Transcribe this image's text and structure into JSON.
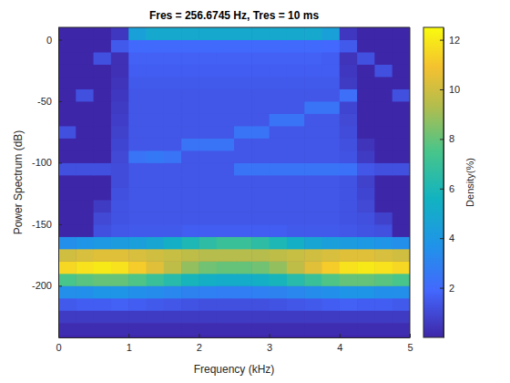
{
  "chart_data": {
    "type": "heatmap",
    "title": "Fres = 256.6745 Hz, Tres = 10 ms",
    "x_label": "Frequency (kHz)",
    "y_label": "Power Spectrum (dB)",
    "xlim": [
      0,
      5
    ],
    "xticks": [
      0,
      1,
      2,
      3,
      4,
      5
    ],
    "ylim": [
      -242,
      10
    ],
    "yticks": [
      -200,
      -150,
      -100,
      -50,
      0
    ],
    "x_bins": [
      0,
      0.25,
      0.5,
      0.75,
      1,
      1.25,
      1.5,
      1.75,
      2,
      2.25,
      2.5,
      2.75,
      3,
      3.25,
      3.5,
      3.75,
      4,
      4.25,
      4.5,
      4.75,
      5
    ],
    "y_bins": [
      -240,
      -230,
      -220,
      -210,
      -200,
      -190,
      -180,
      -170,
      -160,
      -150,
      -140,
      -130,
      -120,
      -110,
      -100,
      -90,
      -80,
      -70,
      -60,
      -50,
      -40,
      -30,
      -20,
      -10,
      0,
      10
    ],
    "density": [
      [
        0.2,
        0.2,
        0.2,
        0.2,
        0.2,
        0.2,
        0.2,
        0.2,
        0.2,
        0.2,
        0.2,
        0.2,
        0.2,
        0.2,
        0.2,
        0.2,
        0.2,
        0.2,
        0.2,
        0.2
      ],
      [
        0.6,
        0.6,
        0.6,
        0.6,
        0.6,
        0.6,
        0.6,
        0.6,
        0.6,
        0.6,
        0.6,
        0.6,
        0.6,
        0.6,
        0.6,
        0.6,
        0.6,
        0.6,
        0.6,
        0.6
      ],
      [
        1.5,
        1.6,
        1.6,
        1.7,
        1.6,
        1.5,
        1.4,
        1.3,
        1.2,
        1.2,
        1.2,
        1.2,
        1.3,
        1.4,
        1.5,
        1.6,
        1.7,
        1.6,
        1.6,
        1.5
      ],
      [
        3.5,
        3.6,
        3.8,
        3.8,
        3.6,
        3.4,
        3.2,
        3.0,
        2.9,
        2.8,
        2.8,
        2.9,
        3.0,
        3.2,
        3.4,
        3.6,
        3.8,
        3.8,
        3.6,
        3.5
      ],
      [
        7.5,
        7.8,
        8.0,
        8.0,
        7.6,
        7.0,
        6.4,
        5.8,
        5.4,
        5.2,
        5.2,
        5.4,
        5.8,
        6.4,
        7.0,
        7.6,
        8.0,
        8.0,
        7.8,
        7.5
      ],
      [
        11.5,
        11.8,
        12.0,
        11.8,
        11.2,
        10.4,
        9.6,
        8.8,
        8.2,
        8.0,
        8.0,
        8.2,
        8.8,
        9.6,
        10.4,
        11.2,
        11.8,
        12.0,
        11.8,
        11.5
      ],
      [
        10.0,
        10.2,
        10.4,
        10.4,
        10.2,
        10.0,
        9.8,
        9.6,
        9.4,
        9.4,
        9.4,
        9.4,
        9.6,
        9.8,
        10.0,
        10.2,
        10.4,
        10.4,
        10.2,
        10.0
      ],
      [
        3.5,
        3.8,
        4.0,
        4.2,
        4.4,
        4.8,
        5.4,
        6.0,
        6.6,
        7.0,
        7.0,
        6.6,
        6.0,
        5.4,
        4.8,
        4.4,
        4.2,
        4.0,
        3.8,
        3.5
      ],
      [
        0,
        0,
        1.2,
        1.4,
        1.5,
        1.5,
        1.5,
        1.6,
        1.6,
        1.6,
        1.6,
        1.6,
        1.6,
        1.5,
        1.5,
        1.5,
        1.4,
        1.3,
        1.2,
        0
      ],
      [
        0,
        0,
        1.0,
        1.3,
        1.4,
        1.4,
        1.4,
        1.4,
        1.4,
        1.4,
        1.4,
        1.4,
        1.4,
        1.4,
        1.4,
        1.4,
        1.3,
        1.2,
        0.8,
        0
      ],
      [
        0,
        0,
        0.6,
        1.3,
        1.4,
        1.4,
        1.4,
        1.4,
        1.4,
        1.4,
        1.4,
        1.4,
        1.4,
        1.4,
        1.4,
        1.4,
        1.3,
        1.0,
        0,
        0
      ],
      [
        0,
        0,
        0,
        1.2,
        1.4,
        1.4,
        1.4,
        1.4,
        1.4,
        1.4,
        1.4,
        1.4,
        1.4,
        1.4,
        1.4,
        1.4,
        1.3,
        0.9,
        0,
        0
      ],
      [
        0,
        0,
        0,
        1.1,
        1.4,
        1.4,
        1.4,
        1.4,
        1.4,
        1.4,
        1.4,
        1.4,
        1.4,
        1.4,
        1.4,
        1.4,
        1.3,
        0.8,
        0,
        0
      ],
      [
        1.2,
        1.2,
        1.2,
        1.1,
        1.4,
        1.4,
        1.4,
        1.4,
        1.4,
        1.4,
        2.4,
        2.4,
        2.4,
        2.4,
        2.4,
        2.4,
        2.3,
        1.4,
        1.2,
        1.2
      ],
      [
        0,
        0,
        0,
        1.0,
        2.4,
        2.6,
        2.4,
        1.4,
        1.4,
        1.4,
        1.4,
        1.4,
        1.4,
        1.4,
        1.4,
        1.4,
        1.3,
        0.6,
        0,
        0
      ],
      [
        0,
        0,
        0,
        0.9,
        1.4,
        1.4,
        1.4,
        2.4,
        2.4,
        2.4,
        1.4,
        1.4,
        1.4,
        1.4,
        1.4,
        1.4,
        1.2,
        0.4,
        0,
        0
      ],
      [
        1.2,
        0,
        0,
        0.8,
        1.4,
        1.4,
        1.4,
        1.4,
        1.4,
        1.4,
        2.4,
        2.4,
        1.4,
        1.4,
        1.4,
        1.4,
        1.1,
        0,
        0,
        0
      ],
      [
        0,
        0,
        0,
        0.7,
        1.4,
        1.4,
        1.4,
        1.4,
        1.4,
        1.4,
        1.4,
        1.4,
        2.4,
        2.4,
        1.4,
        1.4,
        1.0,
        0,
        0,
        0
      ],
      [
        0,
        0,
        0,
        0.6,
        1.4,
        1.4,
        1.4,
        1.4,
        1.4,
        1.4,
        1.4,
        1.4,
        1.4,
        1.4,
        2.4,
        2.4,
        0.9,
        0,
        0,
        0
      ],
      [
        0,
        1.2,
        0,
        0.5,
        1.4,
        1.4,
        1.4,
        1.4,
        1.4,
        1.4,
        1.4,
        1.4,
        1.4,
        1.4,
        1.4,
        1.4,
        2.2,
        0,
        0,
        1.2
      ],
      [
        0,
        0,
        0,
        0.4,
        1.5,
        1.5,
        1.5,
        1.5,
        1.5,
        1.5,
        1.5,
        1.5,
        1.5,
        1.5,
        1.5,
        1.5,
        0.6,
        0,
        0,
        0
      ],
      [
        0,
        0,
        0,
        0.3,
        1.6,
        1.6,
        1.6,
        1.6,
        1.6,
        1.6,
        1.6,
        1.6,
        1.6,
        1.6,
        1.6,
        1.6,
        0.5,
        0,
        1.2,
        0
      ],
      [
        0,
        0,
        1.2,
        0.3,
        1.7,
        1.7,
        1.7,
        1.7,
        1.7,
        1.7,
        1.7,
        1.7,
        1.7,
        1.7,
        1.7,
        1.6,
        0.4,
        1.2,
        0,
        0
      ],
      [
        0,
        0,
        0,
        1.5,
        2.0,
        2.0,
        2.0,
        2.0,
        2.0,
        2.0,
        2.0,
        2.0,
        2.0,
        2.0,
        2.0,
        1.9,
        1.5,
        0,
        0,
        0
      ],
      [
        0,
        0,
        0,
        0.5,
        4.5,
        5.0,
        5.0,
        5.0,
        5.0,
        5.0,
        5.0,
        5.0,
        5.0,
        5.0,
        5.0,
        4.5,
        0.5,
        0,
        0,
        0
      ]
    ],
    "colorbar": {
      "lim": [
        0,
        12.5
      ],
      "ticks": [
        2,
        4,
        6,
        8,
        10,
        12
      ],
      "label": "Density(%)"
    }
  }
}
